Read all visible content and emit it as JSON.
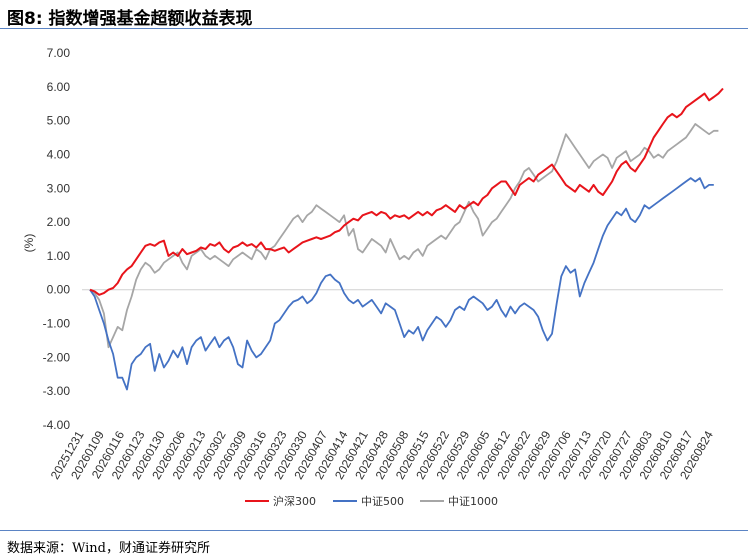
{
  "figure": {
    "title": "图8: 指数增强基金超额收益表现",
    "source": "数据来源：Wind，财通证券研究所"
  },
  "chart_data": {
    "type": "line",
    "title": "图8: 指数增强基金超额收益表现",
    "ylabel": "(%)",
    "ylim": [
      -4,
      7
    ],
    "y_ticks": [
      "-4.00",
      "-3.00",
      "-2.00",
      "-1.00",
      "0.00",
      "1.00",
      "2.00",
      "3.00",
      "4.00",
      "5.00",
      "6.00",
      "7.00"
    ],
    "x_ticks": [
      "20251231",
      "20260109",
      "20260116",
      "20260123",
      "20260130",
      "20260206",
      "20260213",
      "20260302",
      "20260309",
      "20260316",
      "20260323",
      "20260330",
      "20260407",
      "20260414",
      "20260421",
      "20260428",
      "20260508",
      "20260515",
      "20260522",
      "20260529",
      "20260605",
      "20260612",
      "20260622",
      "20260629",
      "20260706",
      "20260713",
      "20260720",
      "20260727",
      "20260803",
      "20260810",
      "20260817",
      "20260824"
    ],
    "grid": false,
    "legend_position": "bottom",
    "series": [
      {
        "name": "沪深300",
        "color": "#e8141b",
        "values": [
          0.0,
          -0.05,
          -0.15,
          -0.1,
          0.0,
          0.05,
          0.2,
          0.45,
          0.6,
          0.7,
          0.9,
          1.1,
          1.3,
          1.35,
          1.3,
          1.4,
          1.45,
          1.0,
          1.1,
          1.0,
          1.2,
          1.05,
          1.1,
          1.15,
          1.25,
          1.2,
          1.35,
          1.3,
          1.4,
          1.2,
          1.1,
          1.25,
          1.3,
          1.4,
          1.3,
          1.35,
          1.25,
          1.4,
          1.2,
          1.2,
          1.15,
          1.2,
          1.25,
          1.1,
          1.2,
          1.3,
          1.4,
          1.45,
          1.5,
          1.55,
          1.5,
          1.55,
          1.6,
          1.7,
          1.75,
          1.9,
          2.0,
          2.1,
          2.05,
          2.2,
          2.25,
          2.3,
          2.2,
          2.3,
          2.25,
          2.1,
          2.2,
          2.15,
          2.2,
          2.1,
          2.2,
          2.3,
          2.2,
          2.3,
          2.2,
          2.35,
          2.4,
          2.5,
          2.4,
          2.3,
          2.5,
          2.4,
          2.5,
          2.6,
          2.5,
          2.7,
          2.8,
          3.0,
          3.1,
          3.2,
          3.2,
          3.0,
          2.8,
          3.1,
          3.2,
          3.3,
          3.2,
          3.4,
          3.5,
          3.6,
          3.7,
          3.5,
          3.3,
          3.1,
          3.0,
          2.9,
          3.1,
          3.0,
          2.9,
          3.1,
          2.9,
          2.8,
          3.0,
          3.2,
          3.5,
          3.7,
          3.8,
          3.6,
          3.5,
          3.7,
          3.9,
          4.2,
          4.5,
          4.7,
          4.9,
          5.1,
          5.2,
          5.1,
          5.2,
          5.4,
          5.5,
          5.6,
          5.7,
          5.8,
          5.6,
          5.7,
          5.8,
          5.95
        ]
      },
      {
        "name": "中证500",
        "color": "#4472c4",
        "values": [
          0.0,
          -0.2,
          -0.6,
          -1.0,
          -1.5,
          -1.9,
          -2.6,
          -2.6,
          -2.95,
          -2.2,
          -2.0,
          -1.9,
          -1.7,
          -1.6,
          -2.4,
          -1.9,
          -2.3,
          -2.1,
          -1.8,
          -2.0,
          -1.7,
          -2.2,
          -1.7,
          -1.5,
          -1.4,
          -1.8,
          -1.6,
          -1.4,
          -1.7,
          -1.5,
          -1.4,
          -1.7,
          -2.2,
          -2.3,
          -1.5,
          -1.8,
          -2.0,
          -1.9,
          -1.7,
          -1.5,
          -1.0,
          -0.9,
          -0.7,
          -0.5,
          -0.35,
          -0.3,
          -0.2,
          -0.4,
          -0.3,
          -0.1,
          0.2,
          0.4,
          0.45,
          0.3,
          0.2,
          -0.1,
          -0.3,
          -0.4,
          -0.3,
          -0.5,
          -0.4,
          -0.3,
          -0.5,
          -0.7,
          -0.4,
          -0.5,
          -0.6,
          -1.0,
          -1.4,
          -1.2,
          -1.3,
          -1.1,
          -1.5,
          -1.2,
          -1.0,
          -0.8,
          -0.9,
          -1.1,
          -0.9,
          -0.6,
          -0.5,
          -0.6,
          -0.3,
          -0.2,
          -0.3,
          -0.4,
          -0.6,
          -0.5,
          -0.3,
          -0.6,
          -0.8,
          -0.5,
          -0.7,
          -0.5,
          -0.4,
          -0.5,
          -0.6,
          -0.8,
          -1.2,
          -1.5,
          -1.3,
          -0.4,
          0.4,
          0.7,
          0.5,
          0.6,
          -0.2,
          0.2,
          0.5,
          0.8,
          1.2,
          1.6,
          1.9,
          2.1,
          2.3,
          2.2,
          2.4,
          2.1,
          2.0,
          2.2,
          2.5,
          2.4,
          2.5,
          2.6,
          2.7,
          2.8,
          2.9,
          3.0,
          3.1,
          3.2,
          3.3,
          3.2,
          3.3,
          3.0,
          3.1,
          3.1
        ]
      },
      {
        "name": "中证1000",
        "color": "#a6a6a6",
        "values": [
          0.0,
          -0.1,
          -0.3,
          -0.7,
          -1.7,
          -1.4,
          -1.1,
          -1.2,
          -0.6,
          -0.2,
          0.3,
          0.6,
          0.8,
          0.7,
          0.5,
          0.6,
          0.8,
          0.9,
          1.0,
          1.1,
          0.8,
          0.6,
          1.0,
          1.1,
          1.2,
          1.0,
          0.9,
          1.0,
          0.9,
          0.8,
          0.7,
          0.9,
          1.0,
          1.1,
          1.0,
          0.9,
          1.2,
          1.1,
          0.9,
          1.2,
          1.3,
          1.5,
          1.7,
          1.9,
          2.1,
          2.2,
          2.0,
          2.2,
          2.3,
          2.5,
          2.4,
          2.3,
          2.2,
          2.1,
          2.0,
          2.2,
          1.6,
          1.8,
          1.2,
          1.1,
          1.3,
          1.5,
          1.4,
          1.3,
          1.1,
          1.5,
          1.2,
          0.9,
          1.0,
          0.9,
          1.1,
          1.2,
          1.0,
          1.3,
          1.4,
          1.5,
          1.6,
          1.5,
          1.7,
          1.9,
          2.0,
          2.3,
          2.6,
          2.3,
          2.1,
          1.6,
          1.8,
          2.0,
          2.1,
          2.3,
          2.5,
          2.7,
          3.0,
          3.2,
          3.5,
          3.6,
          3.4,
          3.2,
          3.3,
          3.4,
          3.5,
          3.8,
          4.2,
          4.6,
          4.4,
          4.2,
          4.0,
          3.8,
          3.6,
          3.8,
          3.9,
          4.0,
          3.9,
          3.6,
          3.9,
          4.0,
          4.1,
          3.8,
          3.9,
          4.0,
          4.2,
          4.1,
          3.9,
          4.0,
          3.9,
          4.1,
          4.2,
          4.3,
          4.4,
          4.5,
          4.7,
          4.9,
          4.8,
          4.7,
          4.6,
          4.7,
          4.7
        ]
      }
    ]
  }
}
